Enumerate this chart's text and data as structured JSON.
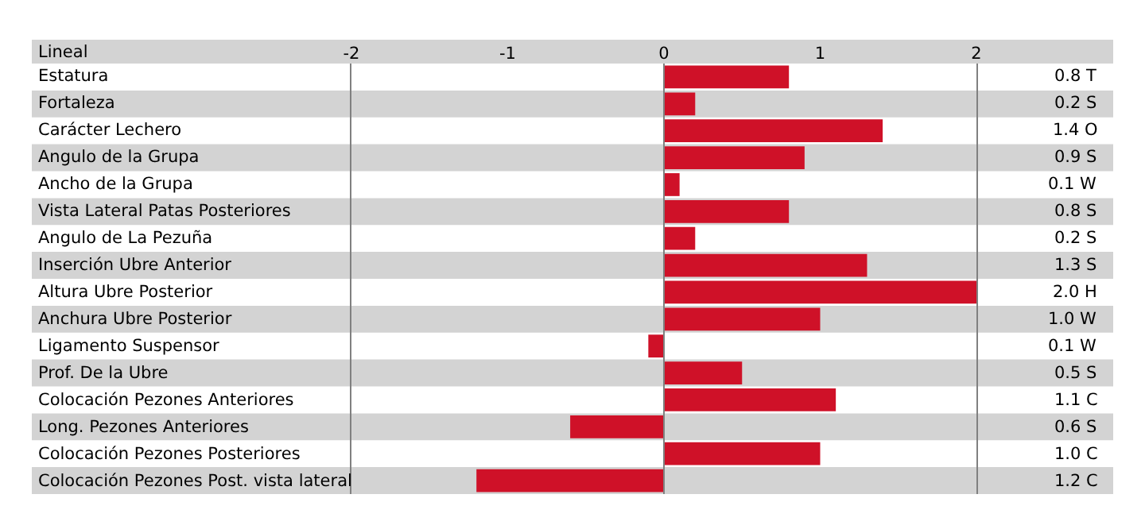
{
  "chart_data": {
    "type": "bar",
    "orientation": "horizontal",
    "ylabel": "Lineal",
    "categories": [
      "Estatura",
      "Fortaleza",
      "Carácter Lechero",
      "Angulo de la Grupa",
      "Ancho de la Grupa",
      "Vista Lateral Patas Posteriores",
      "Angulo de La Pezuña",
      "Inserción Ubre Anterior",
      "Altura Ubre Posterior",
      "Anchura Ubre Posterior",
      "Ligamento Suspensor",
      "Prof. De la Ubre",
      "Colocación Pezones Anteriores",
      "Long. Pezones Anteriores",
      "Colocación Pezones Posteriores",
      "Colocación Pezones Post. vista lateral"
    ],
    "values": [
      0.8,
      0.2,
      1.4,
      0.9,
      0.1,
      0.8,
      0.2,
      1.3,
      2.0,
      1.0,
      -0.1,
      0.5,
      1.1,
      -0.6,
      1.0,
      -1.2
    ],
    "annotations": [
      "0.8 T",
      "0.2 S",
      "1.4 O",
      "0.9 S",
      "0.1 W",
      "0.8 S",
      "0.2 S",
      "1.3 S",
      "2.0 H",
      "1.0 W",
      "0.1 W",
      "0.5 S",
      "1.1 C",
      "0.6 S",
      "1.0 C",
      "1.2 C"
    ],
    "color": "#cf1128",
    "xlim": [
      -2,
      2
    ],
    "xticks": [
      -2,
      -1,
      0,
      1,
      2
    ],
    "ref_lines": [
      {
        "axis": "x",
        "value": 0,
        "color": "#808080"
      }
    ]
  }
}
